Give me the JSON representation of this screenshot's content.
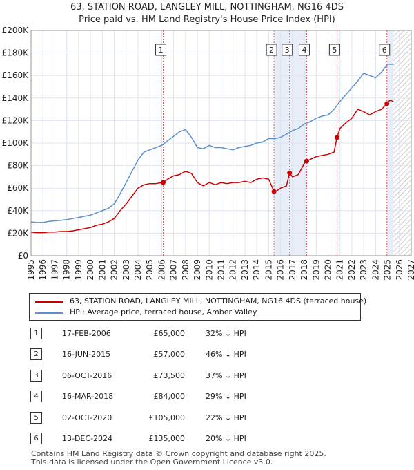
{
  "title": {
    "line1": "63, STATION ROAD, LANGLEY MILL, NOTTINGHAM, NG16 4DS",
    "line2": "Price paid vs. HM Land Registry's House Price Index (HPI)"
  },
  "colors": {
    "property": "#cc0000",
    "hpi": "#5b8fd0",
    "grid": "#dde3ee",
    "sale_line": "#e06060",
    "band": "#e8eef8",
    "future": "#cccccc"
  },
  "chart_data": {
    "type": "line",
    "title": "63, STATION ROAD, LANGLEY MILL, NOTTINGHAM, NG16 4DS",
    "ylabel": "",
    "xlabel": "",
    "xlim": [
      1995,
      2027
    ],
    "ylim": [
      0,
      200000
    ],
    "y_ticks": [
      0,
      20000,
      40000,
      60000,
      80000,
      100000,
      120000,
      140000,
      160000,
      180000,
      200000
    ],
    "y_tick_labels": [
      "£0",
      "£20K",
      "£40K",
      "£60K",
      "£80K",
      "£100K",
      "£120K",
      "£140K",
      "£160K",
      "£180K",
      "£200K"
    ],
    "x_ticks": [
      1995,
      1996,
      1997,
      1998,
      1999,
      2000,
      2001,
      2002,
      2003,
      2004,
      2005,
      2006,
      2007,
      2008,
      2009,
      2010,
      2011,
      2012,
      2013,
      2014,
      2015,
      2016,
      2017,
      2018,
      2019,
      2020,
      2021,
      2022,
      2023,
      2024,
      2025,
      2026,
      2027
    ],
    "grid": true,
    "future_from": 2025.5,
    "series": [
      {
        "name": "63, STATION ROAD, LANGLEY MILL, NOTTINGHAM, NG16 4DS (terraced house)",
        "x": [
          1995.0,
          1995.5,
          1996.0,
          1996.5,
          1997.0,
          1997.5,
          1998.0,
          1998.5,
          1999.0,
          1999.5,
          2000.0,
          2000.5,
          2001.0,
          2001.5,
          2002.0,
          2002.5,
          2003.0,
          2003.5,
          2004.0,
          2004.5,
          2005.0,
          2005.5,
          2006.0,
          2006.12,
          2006.5,
          2007.0,
          2007.5,
          2008.0,
          2008.5,
          2009.0,
          2009.5,
          2010.0,
          2010.5,
          2011.0,
          2011.5,
          2012.0,
          2012.5,
          2013.0,
          2013.5,
          2014.0,
          2014.5,
          2015.0,
          2015.45,
          2015.6,
          2016.0,
          2016.5,
          2016.76,
          2017.0,
          2017.5,
          2018.0,
          2018.2,
          2018.6,
          2019.0,
          2019.5,
          2020.0,
          2020.5,
          2020.75,
          2021.0,
          2021.5,
          2022.0,
          2022.5,
          2023.0,
          2023.5,
          2024.0,
          2024.5,
          2024.95,
          2025.2,
          2025.5
        ],
        "values": [
          21000,
          20500,
          20500,
          21000,
          21000,
          21500,
          21500,
          22000,
          23000,
          24000,
          25000,
          27000,
          28000,
          30000,
          33000,
          40000,
          46000,
          53000,
          60000,
          63000,
          64000,
          64000,
          65000,
          65000,
          68000,
          71000,
          72000,
          75000,
          73000,
          65000,
          62000,
          65000,
          63000,
          65000,
          64000,
          65000,
          65000,
          66000,
          65000,
          68000,
          69000,
          68000,
          57000,
          57000,
          60000,
          62000,
          73500,
          70000,
          72000,
          82000,
          84000,
          86000,
          88000,
          89000,
          90000,
          92000,
          105000,
          113000,
          118000,
          122000,
          130000,
          128000,
          125000,
          128000,
          130000,
          135000,
          138000,
          137000
        ]
      },
      {
        "name": "HPI: Average price, terraced house, Amber Valley",
        "x": [
          1995.0,
          1995.5,
          1996.0,
          1996.5,
          1997.0,
          1997.5,
          1998.0,
          1998.5,
          1999.0,
          1999.5,
          2000.0,
          2000.5,
          2001.0,
          2001.5,
          2002.0,
          2002.5,
          2003.0,
          2003.5,
          2004.0,
          2004.5,
          2005.0,
          2005.5,
          2006.0,
          2006.5,
          2007.0,
          2007.5,
          2008.0,
          2008.5,
          2009.0,
          2009.5,
          2010.0,
          2010.5,
          2011.0,
          2011.5,
          2012.0,
          2012.5,
          2013.0,
          2013.5,
          2014.0,
          2014.5,
          2015.0,
          2015.5,
          2016.0,
          2016.5,
          2017.0,
          2017.5,
          2018.0,
          2018.5,
          2019.0,
          2019.5,
          2020.0,
          2020.5,
          2021.0,
          2021.5,
          2022.0,
          2022.5,
          2023.0,
          2023.5,
          2024.0,
          2024.5,
          2025.0,
          2025.5
        ],
        "values": [
          30000,
          29500,
          29500,
          30500,
          31000,
          31500,
          32000,
          33000,
          34000,
          35000,
          36000,
          38000,
          40000,
          42000,
          46000,
          55000,
          65000,
          75000,
          85000,
          92000,
          94000,
          96000,
          98000,
          102000,
          106000,
          110000,
          112000,
          105000,
          96000,
          95000,
          98000,
          96000,
          96000,
          95000,
          94000,
          96000,
          97000,
          98000,
          100000,
          101000,
          104000,
          104000,
          105000,
          108000,
          111000,
          113000,
          117000,
          119000,
          122000,
          124000,
          125000,
          130000,
          137000,
          143000,
          149000,
          155000,
          162000,
          160000,
          158000,
          163000,
          170000,
          170000
        ]
      }
    ],
    "sales": [
      {
        "n": "1",
        "x": 2006.12,
        "price": 65000
      },
      {
        "n": "2",
        "x": 2015.45,
        "price": 57000
      },
      {
        "n": "3",
        "x": 2016.76,
        "price": 73500
      },
      {
        "n": "4",
        "x": 2018.2,
        "price": 84000
      },
      {
        "n": "5",
        "x": 2020.75,
        "price": 105000
      },
      {
        "n": "6",
        "x": 2024.95,
        "price": 135000
      }
    ],
    "shaded_bands": [
      [
        2015.45,
        2016.76
      ],
      [
        2016.76,
        2018.2
      ],
      [
        2024.95,
        2025.5
      ]
    ]
  },
  "legend": {
    "property": "63, STATION ROAD, LANGLEY MILL, NOTTINGHAM, NG16 4DS (terraced house)",
    "hpi": "HPI: Average price, terraced house, Amber Valley"
  },
  "table": [
    {
      "n": "1",
      "date": "17-FEB-2006",
      "price": "£65,000",
      "pct": "32% ↓ HPI"
    },
    {
      "n": "2",
      "date": "16-JUN-2015",
      "price": "£57,000",
      "pct": "46% ↓ HPI"
    },
    {
      "n": "3",
      "date": "06-OCT-2016",
      "price": "£73,500",
      "pct": "37% ↓ HPI"
    },
    {
      "n": "4",
      "date": "16-MAR-2018",
      "price": "£84,000",
      "pct": "29% ↓ HPI"
    },
    {
      "n": "5",
      "date": "02-OCT-2020",
      "price": "£105,000",
      "pct": "22% ↓ HPI"
    },
    {
      "n": "6",
      "date": "13-DEC-2024",
      "price": "£135,000",
      "pct": "20% ↓ HPI"
    }
  ],
  "footer": {
    "line1": "Contains HM Land Registry data © Crown copyright and database right 2025.",
    "line2": "This data is licensed under the Open Government Licence v3.0."
  }
}
